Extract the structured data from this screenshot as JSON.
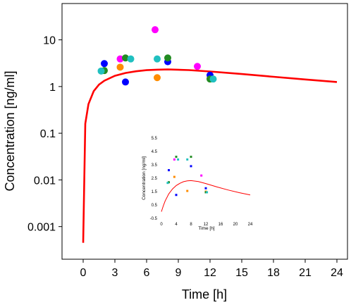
{
  "chart_data": [
    {
      "type": "scatter",
      "xlabel": "Time [h]",
      "ylabel": "Concentration [ng/ml]",
      "yscale": "log",
      "xlim": [
        -2,
        25
      ],
      "ylim": [
        0.0002,
        60
      ],
      "xticks": [
        "0",
        "3",
        "6",
        "9",
        "12",
        "15",
        "18",
        "21",
        "24"
      ],
      "yticks": [
        "0.001",
        "0.01",
        "0.1",
        "1",
        "10"
      ],
      "grid": false,
      "series": [
        {
          "color": "#ff00ff",
          "points": [
            [
              3.5,
              3.9
            ],
            [
              6.8,
              16.5
            ],
            [
              10.8,
              2.7
            ]
          ]
        },
        {
          "color": "#ff8c00",
          "points": [
            [
              3.5,
              2.6
            ],
            [
              7.0,
              1.55
            ],
            [
              12.0,
              1.5
            ]
          ]
        },
        {
          "color": "#0000ff",
          "points": [
            [
              2.0,
              3.1
            ],
            [
              4.0,
              1.25
            ],
            [
              8.0,
              3.4
            ],
            [
              12.0,
              1.75
            ]
          ]
        },
        {
          "color": "#228b22",
          "points": [
            [
              2.0,
              2.2
            ],
            [
              4.0,
              4.1
            ],
            [
              8.0,
              4.1
            ],
            [
              12.0,
              1.45
            ]
          ]
        },
        {
          "color": "#20c0c0",
          "points": [
            [
              1.7,
              2.15
            ],
            [
              4.5,
              3.9
            ],
            [
              7.0,
              3.9
            ],
            [
              12.3,
              1.45
            ]
          ]
        }
      ],
      "fit_curve": {
        "color": "#ff0000",
        "x": [
          0,
          0.2,
          0.5,
          1,
          1.5,
          2,
          3,
          4,
          5,
          6,
          7,
          8,
          10,
          12,
          15,
          18,
          21,
          24
        ],
        "y": [
          0.00045,
          0.16,
          0.42,
          0.8,
          1.1,
          1.33,
          1.7,
          1.95,
          2.12,
          2.24,
          2.3,
          2.32,
          2.25,
          2.1,
          1.85,
          1.62,
          1.42,
          1.25
        ]
      }
    },
    {
      "type": "scatter",
      "xlabel": "Time [h]",
      "ylabel": "Concentration [ng/ml]",
      "yscale": "linear",
      "xlim": [
        0,
        24
      ],
      "ylim": [
        -0.5,
        5.5
      ],
      "xticks": [
        "0",
        "4",
        "8",
        "12",
        "16",
        "20",
        "24"
      ],
      "yticks": [
        "-0.5",
        "0.5",
        "1.5",
        "2.5",
        "3.5",
        "4.5",
        "5.5"
      ],
      "series": [
        {
          "color": "#ff00ff",
          "points": [
            [
              3.5,
              3.9
            ],
            [
              10.8,
              2.7
            ]
          ]
        },
        {
          "color": "#ff8c00",
          "points": [
            [
              3.5,
              2.6
            ],
            [
              7.0,
              1.55
            ],
            [
              12.0,
              1.5
            ]
          ]
        },
        {
          "color": "#0000ff",
          "points": [
            [
              2.0,
              3.1
            ],
            [
              4.0,
              1.25
            ],
            [
              8.0,
              3.4
            ],
            [
              12.0,
              1.75
            ]
          ]
        },
        {
          "color": "#228b22",
          "points": [
            [
              2.0,
              2.2
            ],
            [
              4.0,
              4.1
            ],
            [
              8.0,
              4.1
            ],
            [
              12.0,
              1.45
            ]
          ]
        },
        {
          "color": "#20c0c0",
          "points": [
            [
              1.7,
              2.15
            ],
            [
              4.5,
              3.9
            ],
            [
              7.0,
              3.9
            ],
            [
              12.3,
              1.45
            ]
          ]
        }
      ],
      "fit_curve": {
        "color": "#ff0000",
        "x": [
          0,
          0.5,
          1,
          2,
          3,
          4,
          5,
          6,
          7,
          8,
          10,
          12,
          15,
          18,
          21,
          24
        ],
        "y": [
          0,
          0.42,
          0.8,
          1.33,
          1.7,
          1.95,
          2.12,
          2.24,
          2.3,
          2.32,
          2.25,
          2.1,
          1.85,
          1.62,
          1.42,
          1.25
        ]
      }
    }
  ]
}
